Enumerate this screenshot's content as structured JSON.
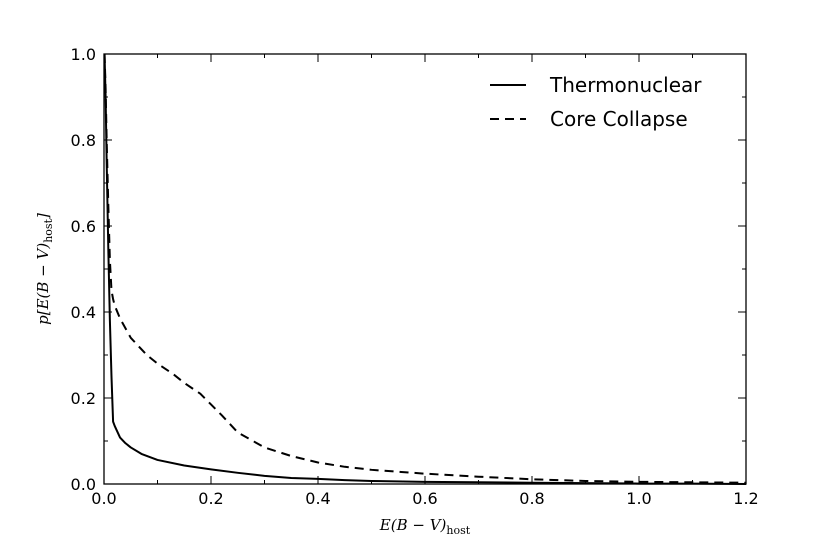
{
  "chart_data": {
    "type": "line",
    "title": "",
    "xlabel": "E(B − V)host",
    "ylabel": "p[E(B − V)host]",
    "xlim": [
      0.0,
      1.2
    ],
    "ylim": [
      0.0,
      1.0
    ],
    "xticks": [
      "0.0",
      "0.2",
      "0.4",
      "0.6",
      "0.8",
      "1.0",
      "1.2"
    ],
    "yticks": [
      "0.0",
      "0.2",
      "0.4",
      "0.6",
      "0.8",
      "1.0"
    ],
    "grid": false,
    "legend_position": "top-right",
    "series": [
      {
        "name": "Thermonuclear",
        "style": "solid",
        "color": "#000000",
        "x": [
          0.001,
          0.003,
          0.005,
          0.008,
          0.011,
          0.014,
          0.017,
          0.02,
          0.03,
          0.04,
          0.05,
          0.07,
          0.1,
          0.15,
          0.2,
          0.25,
          0.3,
          0.35,
          0.4,
          0.45,
          0.5,
          0.6,
          0.7,
          0.8,
          0.9,
          1.0,
          1.1,
          1.2
        ],
        "y": [
          1.0,
          0.9,
          0.75,
          0.55,
          0.38,
          0.25,
          0.145,
          0.135,
          0.108,
          0.095,
          0.085,
          0.07,
          0.056,
          0.043,
          0.034,
          0.026,
          0.019,
          0.014,
          0.012,
          0.009,
          0.007,
          0.005,
          0.004,
          0.003,
          0.002,
          0.001,
          0.001,
          0.0
        ]
      },
      {
        "name": "Core Collapse",
        "style": "dashed",
        "color": "#000000",
        "x": [
          0.001,
          0.003,
          0.005,
          0.008,
          0.011,
          0.014,
          0.017,
          0.02,
          0.03,
          0.05,
          0.08,
          0.1,
          0.13,
          0.15,
          0.18,
          0.2,
          0.22,
          0.25,
          0.3,
          0.35,
          0.4,
          0.45,
          0.5,
          0.6,
          0.7,
          0.8,
          0.9,
          1.0,
          1.1,
          1.2
        ],
        "y": [
          1.0,
          0.92,
          0.8,
          0.65,
          0.52,
          0.45,
          0.43,
          0.415,
          0.385,
          0.34,
          0.3,
          0.28,
          0.255,
          0.235,
          0.21,
          0.185,
          0.16,
          0.12,
          0.085,
          0.065,
          0.05,
          0.04,
          0.033,
          0.024,
          0.017,
          0.011,
          0.007,
          0.005,
          0.004,
          0.003
        ]
      }
    ]
  }
}
